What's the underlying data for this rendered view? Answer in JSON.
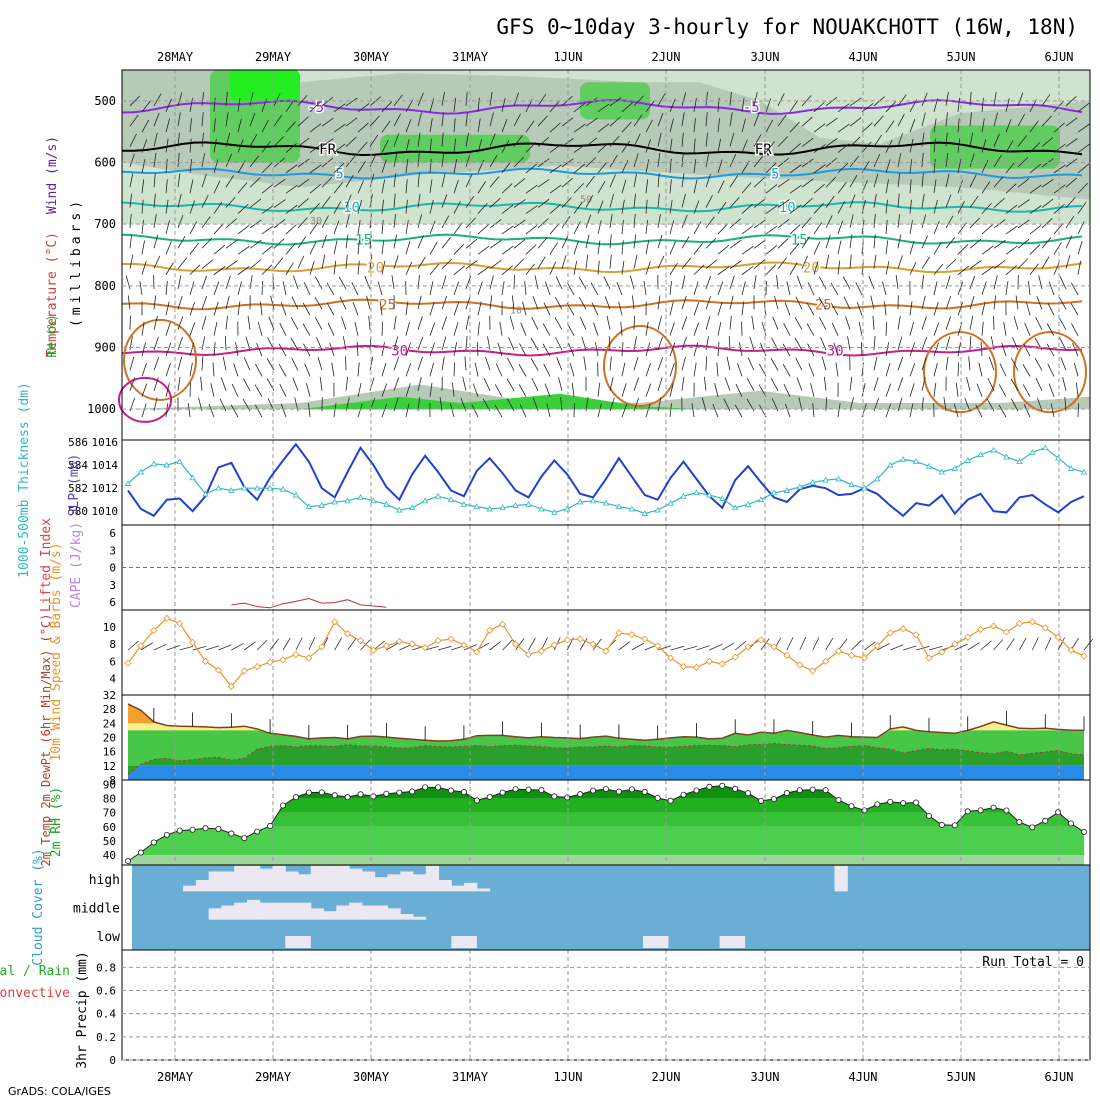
{
  "header": {
    "title": "GFS 0~10day 3-hourly for NOUAKCHOTT (16W, 18N)"
  },
  "footer": {
    "credit": "GrADS: COLA/IGES"
  },
  "colors": {
    "grid": "#9a9a9a",
    "rh_green": "#3ccf3c",
    "rh_pale": "#cfe3cf",
    "rh_grey": "#b7c9b7",
    "temp_lines": [
      "#8a2be2",
      "#2040d0",
      "#1e9ae0",
      "#18b8b0",
      "#18b080",
      "#d8a030",
      "#d07020",
      "#c81e8c"
    ],
    "slp": "#2040d0",
    "thickness": "#30b8c8",
    "wind": "#e8962a",
    "temp_fill": "#f5f08a",
    "temp_fill_hot": "#f0a030",
    "dewpt_fill": "#2aa02a",
    "cold_fill": "#2a8ae8",
    "cloud_sky": "#6aaed6",
    "cloud_fill": "#ece8f2"
  },
  "chart_data": [
    {
      "panel": "upper-air",
      "type": "heatmap",
      "title": "",
      "ylabel_parts": [
        "RH (%)",
        "Temperature (°C)",
        "Wind (m/s)"
      ],
      "ylabel_units": "(millibars)",
      "x_ticks": [
        "28MAY",
        "29MAY",
        "30MAY",
        "31MAY",
        "1JUN",
        "2JUN",
        "3JUN",
        "4JUN",
        "5JUN",
        "6JUN"
      ],
      "y_ticks": [
        500,
        600,
        700,
        800,
        900,
        1000
      ],
      "ylim": [
        1050,
        450
      ],
      "contours": [
        {
          "label": "-5",
          "level_hpa": 510
        },
        {
          "label": "FR",
          "level_hpa": 578
        },
        {
          "label": "5",
          "level_hpa": 618
        },
        {
          "label": "10",
          "level_hpa": 672
        },
        {
          "label": "15",
          "level_hpa": 725
        },
        {
          "label": "20",
          "level_hpa": 770
        },
        {
          "label": "25",
          "level_hpa": 830
        },
        {
          "label": "30",
          "level_hpa": 905
        }
      ],
      "rh_labels": [
        "30",
        "50",
        "10"
      ]
    },
    {
      "panel": "slp-thickness",
      "type": "line",
      "ylabel_left": "1000-500mb Thickness (dm)",
      "ylabel_right": "SLP (mb)",
      "y_ticks_left": [
        580,
        582,
        584,
        586
      ],
      "y_ticks_right": [
        1010,
        1012,
        1014,
        1016
      ],
      "series": [
        {
          "name": "SLP",
          "values": [
            1011.8,
            1010.2,
            1009.6,
            1011.0,
            1011.1,
            1010.0,
            1011.3,
            1013.8,
            1014.2,
            1012.1,
            1011.0,
            1012.9,
            1014.4,
            1015.8,
            1014.3,
            1012.0,
            1011.2,
            1013.4,
            1015.5,
            1014.0,
            1012.1,
            1011.0,
            1013.2,
            1014.8,
            1013.4,
            1011.8,
            1011.3,
            1013.5,
            1014.6,
            1013.3,
            1011.8,
            1011.2,
            1013.0,
            1014.4,
            1013.2,
            1011.5,
            1011.2,
            1012.8,
            1014.6,
            1013.0,
            1011.4,
            1011.0,
            1012.9,
            1014.3,
            1012.8,
            1011.3,
            1010.3,
            1012.7,
            1013.9,
            1012.5,
            1011.2,
            1010.8,
            1011.9,
            1012.2,
            1012.0,
            1011.4,
            1011.5,
            1012.0,
            1011.5,
            1010.5,
            1009.6,
            1010.7,
            1010.5,
            1011.4,
            1009.8,
            1011.0,
            1011.5,
            1010.0,
            1009.9,
            1011.2,
            1011.4,
            1010.6,
            1009.9,
            1010.8,
            1011.3
          ]
        },
        {
          "name": "Thickness",
          "values": [
            582.4,
            583.4,
            584.1,
            584.0,
            584.3,
            582.9,
            581.5,
            582.0,
            581.8,
            582.0,
            582.0,
            582.0,
            581.9,
            581.4,
            580.4,
            580.5,
            580.8,
            580.9,
            581.2,
            580.9,
            580.6,
            580.1,
            580.3,
            580.9,
            581.3,
            581.0,
            580.6,
            580.4,
            580.2,
            580.3,
            580.5,
            580.6,
            580.2,
            579.9,
            580.2,
            580.8,
            580.9,
            580.7,
            580.4,
            580.2,
            579.8,
            580.1,
            580.7,
            581.3,
            581.6,
            581.4,
            581.1,
            580.3,
            580.6,
            581.0,
            581.6,
            581.8,
            582.1,
            582.5,
            582.7,
            582.8,
            582.3,
            582.0,
            582.8,
            584.0,
            584.5,
            584.3,
            583.9,
            583.4,
            583.7,
            584.4,
            584.9,
            585.3,
            584.7,
            584.3,
            585.1,
            585.5,
            584.6,
            583.7,
            583.4
          ]
        }
      ]
    },
    {
      "panel": "cape-li",
      "type": "line",
      "ylabel_left": "Lifted Index",
      "ylabel_right": "CAPE (J/kg)",
      "y_ticks": [
        -6,
        -3,
        0,
        3,
        6
      ],
      "y_tick_labels": [
        "6",
        "3",
        "0",
        "3",
        "6"
      ],
      "series": [
        {
          "name": "Lifted Index",
          "values": [
            6.5,
            6.2,
            6.8,
            7.0,
            6.3,
            5.9,
            5.4,
            6.2,
            6.1,
            5.6,
            6.5,
            6.7,
            6.9
          ]
        }
      ]
    },
    {
      "panel": "wind-10m",
      "type": "line",
      "ylabel": "10m Wind Speed & Barbs (m/s)",
      "y_ticks": [
        4,
        6,
        8,
        10
      ],
      "series": [
        {
          "name": "10m Wind",
          "values": [
            5.8,
            7.8,
            9.6,
            11.0,
            10.4,
            8.2,
            6.0,
            5.0,
            3.1,
            4.9,
            5.4,
            5.9,
            6.2,
            6.8,
            6.4,
            7.7,
            10.6,
            9.2,
            8.4,
            7.3,
            7.8,
            8.3,
            8.0,
            7.6,
            8.4,
            8.6,
            7.9,
            7.1,
            9.6,
            10.3,
            8.0,
            6.8,
            7.2,
            7.9,
            8.5,
            8.6,
            8.0,
            7.2,
            9.3,
            9.1,
            8.6,
            7.8,
            6.4,
            5.4,
            5.3,
            6.0,
            5.7,
            6.5,
            7.7,
            8.5,
            7.7,
            6.7,
            5.6,
            4.9,
            6.0,
            7.2,
            6.7,
            6.4,
            7.8,
            9.3,
            9.8,
            9.1,
            6.4,
            7.1,
            8.0,
            8.8,
            9.7,
            10.1,
            9.4,
            10.4,
            10.6,
            9.9,
            8.8,
            7.3,
            6.6
          ]
        }
      ]
    },
    {
      "panel": "temp-2m",
      "type": "area",
      "ylabel": "2m Temp 2m DewPt (6hr Min/Max) (°C)",
      "y_ticks": [
        8,
        12,
        16,
        20,
        24,
        28,
        32
      ],
      "series": [
        {
          "name": "2m Temp",
          "values": [
            29.5,
            27.7,
            24.4,
            23.4,
            23.2,
            23.1,
            23.0,
            22.8,
            22.9,
            23.2,
            22.4,
            21.2,
            20.8,
            20.3,
            19.6,
            19.9,
            20.0,
            19.6,
            20.3,
            20.4,
            20.1,
            19.8,
            19.5,
            19.2,
            19.0,
            19.1,
            19.5,
            20.5,
            20.6,
            20.6,
            20.2,
            19.9,
            20.2,
            20.0,
            19.9,
            19.7,
            20.1,
            20.4,
            19.8,
            19.5,
            19.2,
            19.5,
            19.9,
            20.2,
            20.1,
            19.6,
            19.8,
            21.2,
            20.7,
            21.5,
            21.2,
            22.0,
            21.4,
            20.7,
            20.1,
            20.6,
            20.2,
            20.1,
            20.0,
            22.4,
            23.0,
            22.0,
            21.6,
            21.4,
            21.2,
            22.0,
            23.1,
            24.4,
            23.5,
            22.6,
            22.5,
            22.6,
            22.3,
            22.1,
            22.0
          ]
        },
        {
          "name": "2m DewPt",
          "values": [
            9.5,
            12.4,
            13.8,
            14.1,
            13.4,
            13.7,
            14.2,
            14.4,
            13.6,
            14.1,
            16.7,
            17.5,
            17.7,
            17.3,
            17.7,
            17.6,
            17.5,
            17.9,
            17.6,
            17.6,
            17.3,
            17.0,
            17.1,
            17.7,
            17.4,
            17.3,
            17.5,
            17.7,
            17.4,
            17.7,
            17.8,
            17.6,
            17.4,
            17.1,
            17.0,
            17.3,
            17.3,
            17.6,
            17.3,
            17.7,
            17.6,
            17.3,
            17.2,
            17.5,
            17.7,
            17.8,
            17.7,
            17.4,
            17.9,
            18.0,
            18.3,
            18.0,
            17.8,
            17.6,
            16.9,
            17.1,
            17.5,
            17.7,
            17.1,
            16.7,
            15.6,
            16.3,
            16.9,
            16.5,
            16.7,
            16.2,
            15.7,
            15.4,
            16.1,
            15.1,
            15.5,
            15.9,
            16.3,
            15.4,
            15.1
          ]
        }
      ]
    },
    {
      "panel": "rh-2m",
      "type": "area",
      "ylabel": "2m RH (%)",
      "y_ticks": [
        40,
        50,
        60,
        70,
        80,
        90
      ],
      "series": [
        {
          "name": "2m RH",
          "values": [
            35.8,
            41.8,
            48.9,
            54.3,
            57.3,
            57.9,
            58.9,
            58.5,
            55.2,
            52.0,
            56.6,
            60.6,
            75.0,
            80.9,
            84.1,
            84.3,
            82.2,
            80.9,
            82.9,
            81.4,
            83.3,
            84.1,
            84.9,
            87.8,
            87.8,
            85.5,
            84.5,
            78.6,
            81.0,
            84.1,
            86.5,
            86.2,
            85.9,
            81.4,
            80.7,
            83.0,
            85.5,
            86.6,
            84.8,
            86.4,
            84.6,
            80.3,
            78.4,
            82.6,
            85.6,
            88.2,
            88.9,
            86.7,
            83.7,
            78.3,
            79.5,
            83.8,
            85.8,
            86.2,
            85.8,
            78.9,
            74.5,
            71.6,
            75.8,
            77.6,
            76.7,
            77.1,
            67.7,
            61.3,
            61.0,
            70.9,
            71.6,
            73.5,
            71.5,
            63.3,
            59.6,
            64.2,
            70.3,
            62.3,
            56.4
          ]
        }
      ]
    },
    {
      "panel": "cloud-cover",
      "type": "heatmap",
      "ylabel": "Cloud Cover (%)",
      "rows": [
        "high",
        "middle",
        "low"
      ],
      "high_values": [
        0,
        0,
        0,
        0,
        20,
        40,
        70,
        70,
        90,
        90,
        80,
        90,
        70,
        60,
        90,
        90,
        90,
        80,
        70,
        50,
        60,
        70,
        60,
        90,
        40,
        20,
        30,
        10,
        0,
        0,
        0,
        0,
        0,
        0,
        0,
        0,
        0,
        0,
        0,
        0,
        0,
        0,
        0,
        0,
        0,
        0,
        0,
        0,
        0,
        0,
        0,
        0,
        0,
        0,
        0,
        90,
        0,
        0,
        0,
        0,
        0,
        0,
        0,
        0,
        0,
        0,
        0,
        0,
        0,
        0,
        0,
        0,
        0,
        0,
        0
      ],
      "middle_values": [
        0,
        0,
        0,
        0,
        0,
        0,
        40,
        50,
        60,
        70,
        60,
        60,
        60,
        60,
        40,
        30,
        50,
        60,
        50,
        50,
        40,
        20,
        10,
        0,
        0,
        0,
        0,
        0,
        0,
        0,
        0,
        0,
        0,
        0,
        0,
        0,
        0,
        0,
        0,
        0,
        0,
        0,
        0,
        0,
        0,
        0,
        0,
        0,
        0,
        0,
        0,
        0,
        0,
        0,
        0,
        0,
        0,
        0,
        0,
        0,
        0,
        0,
        0,
        0,
        0,
        0,
        0,
        0,
        0,
        0,
        0,
        0,
        0,
        0,
        0
      ],
      "low_values": [
        0,
        0,
        0,
        0,
        0,
        0,
        0,
        0,
        0,
        0,
        0,
        0,
        0,
        0,
        0,
        0,
        0,
        0,
        0,
        0,
        0,
        0,
        0,
        0,
        0,
        0,
        0,
        0,
        0,
        0,
        0,
        0,
        0,
        0,
        0,
        0,
        0,
        0,
        0,
        0,
        0,
        0,
        0,
        0,
        0,
        0,
        0,
        0,
        0,
        0,
        0,
        0,
        0,
        0,
        0,
        0,
        0,
        0,
        0,
        0,
        0,
        0,
        0,
        0,
        0,
        0,
        0,
        0,
        0,
        0,
        0,
        0,
        0,
        0,
        0
      ]
    },
    {
      "panel": "precip",
      "type": "bar",
      "ylabel_left_parts": [
        "Total / Rain",
        "Convective"
      ],
      "ylabel": "3hr Precip (mm)",
      "y_ticks": [
        0,
        0.2,
        0.4,
        0.6,
        0.8
      ],
      "annotation": "Run Total = 0",
      "values": []
    }
  ]
}
